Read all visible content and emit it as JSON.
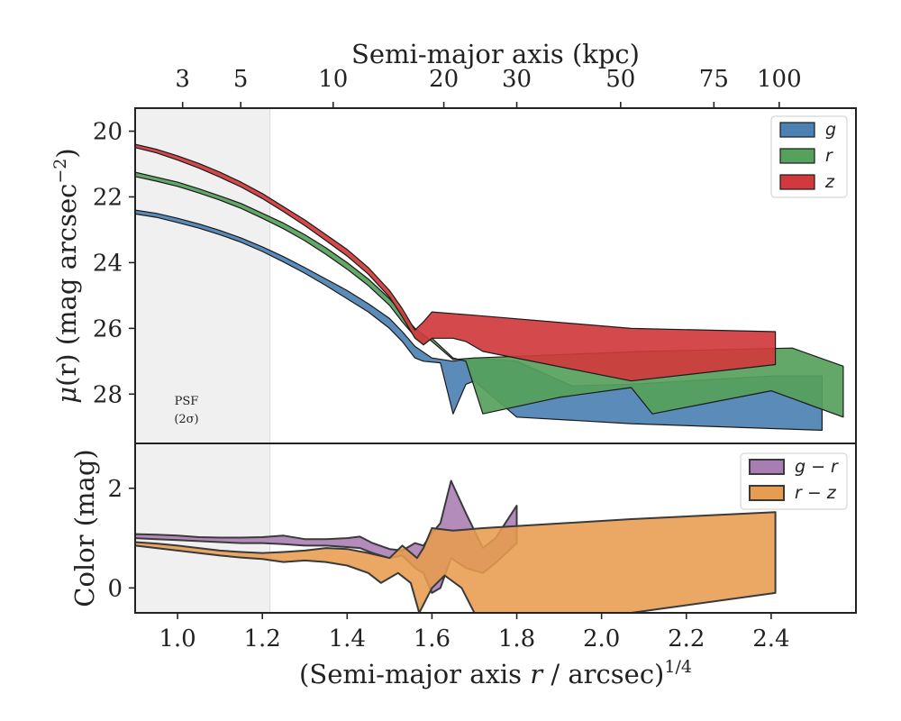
{
  "chart_data": [
    {
      "panel": "surface-brightness",
      "type": "area",
      "top_axis": {
        "label": "Semi-major axis (kpc)",
        "ticks": [
          {
            "label": "3",
            "x": 1.012
          },
          {
            "label": "5",
            "x": 1.149
          },
          {
            "label": "10",
            "x": 1.367
          },
          {
            "label": "20",
            "x": 1.628
          },
          {
            "label": "30",
            "x": 1.8
          },
          {
            "label": "50",
            "x": 2.045
          },
          {
            "label": "75",
            "x": 2.265
          },
          {
            "label": "100",
            "x": 2.419
          }
        ]
      },
      "xlim": [
        0.9,
        2.6
      ],
      "ylim": [
        29.5,
        19.3
      ],
      "y_inverted": true,
      "ylabel_main": "(r) (mag arcsec",
      "ylabel_mu": "μ",
      "ylabel_sup": "−2",
      "ylabel_close": ")",
      "yticks": [
        20,
        22,
        24,
        26,
        28
      ],
      "psf_region": {
        "x_range": [
          0.9,
          1.218
        ],
        "label_line1": "PSF",
        "label_line2": "(2σ)"
      },
      "legend": {
        "placement": "upper-right",
        "entries": [
          "g",
          "r",
          "z"
        ]
      },
      "series": [
        {
          "name": "g",
          "color": "#4c81b3",
          "upper": [
            [
              0.9,
              22.4
            ],
            [
              0.95,
              22.5
            ],
            [
              1.0,
              22.65
            ],
            [
              1.05,
              22.82
            ],
            [
              1.1,
              23.02
            ],
            [
              1.15,
              23.25
            ],
            [
              1.2,
              23.52
            ],
            [
              1.25,
              23.82
            ],
            [
              1.3,
              24.15
            ],
            [
              1.35,
              24.5
            ],
            [
              1.4,
              24.85
            ],
            [
              1.45,
              25.25
            ],
            [
              1.5,
              25.7
            ],
            [
              1.53,
              26.1
            ],
            [
              1.56,
              26.55
            ],
            [
              1.6,
              26.9
            ],
            [
              1.65,
              27.0
            ],
            [
              1.7,
              26.9
            ],
            [
              1.8,
              27.0
            ],
            [
              1.93,
              27.75
            ],
            [
              2.07,
              27.7
            ],
            [
              2.4,
              27.45
            ],
            [
              2.52,
              27.45
            ]
          ],
          "lower": [
            [
              0.9,
              22.52
            ],
            [
              0.95,
              22.62
            ],
            [
              1.0,
              22.78
            ],
            [
              1.05,
              22.95
            ],
            [
              1.1,
              23.15
            ],
            [
              1.15,
              23.38
            ],
            [
              1.2,
              23.66
            ],
            [
              1.25,
              23.98
            ],
            [
              1.3,
              24.32
            ],
            [
              1.35,
              24.7
            ],
            [
              1.4,
              25.1
            ],
            [
              1.45,
              25.5
            ],
            [
              1.5,
              26.0
            ],
            [
              1.53,
              26.4
            ],
            [
              1.56,
              26.9
            ],
            [
              1.58,
              27.0
            ],
            [
              1.62,
              27.05
            ],
            [
              1.65,
              28.6
            ],
            [
              1.68,
              27.7
            ],
            [
              1.7,
              27.6
            ],
            [
              1.8,
              28.7
            ],
            [
              2.07,
              28.9
            ],
            [
              2.52,
              29.1
            ]
          ]
        },
        {
          "name": "r",
          "color": "#56a15b",
          "upper": [
            [
              0.9,
              21.25
            ],
            [
              0.95,
              21.4
            ],
            [
              1.0,
              21.55
            ],
            [
              1.05,
              21.75
            ],
            [
              1.1,
              21.97
            ],
            [
              1.15,
              22.2
            ],
            [
              1.2,
              22.5
            ],
            [
              1.25,
              22.8
            ],
            [
              1.3,
              23.15
            ],
            [
              1.35,
              23.55
            ],
            [
              1.4,
              24.0
            ],
            [
              1.45,
              24.5
            ],
            [
              1.5,
              25.1
            ],
            [
              1.53,
              25.55
            ],
            [
              1.56,
              26.0
            ],
            [
              1.6,
              26.4
            ],
            [
              1.65,
              26.95
            ],
            [
              1.7,
              26.9
            ],
            [
              2.1,
              26.7
            ],
            [
              2.45,
              26.6
            ],
            [
              2.57,
              27.15
            ]
          ],
          "lower": [
            [
              0.9,
              21.38
            ],
            [
              0.95,
              21.52
            ],
            [
              1.0,
              21.68
            ],
            [
              1.05,
              21.88
            ],
            [
              1.1,
              22.1
            ],
            [
              1.15,
              22.35
            ],
            [
              1.2,
              22.65
            ],
            [
              1.25,
              22.97
            ],
            [
              1.3,
              23.33
            ],
            [
              1.35,
              23.75
            ],
            [
              1.4,
              24.2
            ],
            [
              1.45,
              24.7
            ],
            [
              1.5,
              25.3
            ],
            [
              1.53,
              25.8
            ],
            [
              1.56,
              26.25
            ],
            [
              1.58,
              26.5
            ],
            [
              1.6,
              26.3
            ],
            [
              1.65,
              26.9
            ],
            [
              1.68,
              27.0
            ],
            [
              1.72,
              28.6
            ],
            [
              1.9,
              28.1
            ],
            [
              2.07,
              27.8
            ],
            [
              2.12,
              28.6
            ],
            [
              2.4,
              27.9
            ],
            [
              2.57,
              28.7
            ]
          ]
        },
        {
          "name": "z",
          "color": "#d03a3d",
          "upper": [
            [
              0.9,
              20.4
            ],
            [
              0.95,
              20.55
            ],
            [
              1.0,
              20.75
            ],
            [
              1.05,
              20.98
            ],
            [
              1.1,
              21.25
            ],
            [
              1.15,
              21.55
            ],
            [
              1.2,
              21.9
            ],
            [
              1.25,
              22.3
            ],
            [
              1.3,
              22.7
            ],
            [
              1.35,
              23.15
            ],
            [
              1.4,
              23.6
            ],
            [
              1.45,
              24.15
            ],
            [
              1.5,
              24.85
            ],
            [
              1.53,
              25.4
            ],
            [
              1.56,
              26.05
            ],
            [
              1.58,
              25.8
            ],
            [
              1.6,
              25.5
            ],
            [
              1.7,
              25.6
            ],
            [
              2.07,
              26.0
            ],
            [
              2.41,
              26.1
            ]
          ],
          "lower": [
            [
              0.9,
              20.5
            ],
            [
              0.95,
              20.66
            ],
            [
              1.0,
              20.88
            ],
            [
              1.05,
              21.12
            ],
            [
              1.1,
              21.4
            ],
            [
              1.15,
              21.7
            ],
            [
              1.2,
              22.05
            ],
            [
              1.25,
              22.45
            ],
            [
              1.3,
              22.87
            ],
            [
              1.35,
              23.33
            ],
            [
              1.4,
              23.8
            ],
            [
              1.45,
              24.35
            ],
            [
              1.5,
              25.05
            ],
            [
              1.53,
              25.65
            ],
            [
              1.56,
              26.3
            ],
            [
              1.58,
              26.5
            ],
            [
              1.6,
              26.3
            ],
            [
              1.65,
              26.3
            ],
            [
              1.68,
              26.4
            ],
            [
              1.72,
              26.7
            ],
            [
              2.07,
              27.6
            ],
            [
              2.41,
              27.1
            ]
          ]
        }
      ]
    },
    {
      "panel": "color",
      "type": "area",
      "xlim": [
        0.9,
        2.6
      ],
      "ylim": [
        -0.5,
        2.9
      ],
      "ylabel": "Color (mag)",
      "xlabel_main": "(Semi-major axis ",
      "xlabel_r": "r",
      "xlabel_rest": " / arcsec)",
      "xlabel_sup": "1/4",
      "xticks": [
        {
          "label": "1.0",
          "x": 1.0
        },
        {
          "label": "1.2",
          "x": 1.2
        },
        {
          "label": "1.4",
          "x": 1.4
        },
        {
          "label": "1.6",
          "x": 1.6
        },
        {
          "label": "1.8",
          "x": 1.8
        },
        {
          "label": "2.0",
          "x": 2.0
        },
        {
          "label": "2.2",
          "x": 2.2
        },
        {
          "label": "2.4",
          "x": 2.4
        }
      ],
      "yticks": [
        0,
        2
      ],
      "psf_region": {
        "x_range": [
          0.9,
          1.218
        ]
      },
      "legend": {
        "placement": "upper-right",
        "entries": [
          "g − r",
          "r − z"
        ]
      },
      "series": [
        {
          "name": "g − r",
          "color": "#a97cb3",
          "upper": [
            [
              0.9,
              1.08
            ],
            [
              0.95,
              1.07
            ],
            [
              1.0,
              1.05
            ],
            [
              1.05,
              1.02
            ],
            [
              1.1,
              1.01
            ],
            [
              1.15,
              1.01
            ],
            [
              1.2,
              1.02
            ],
            [
              1.25,
              1.05
            ],
            [
              1.3,
              0.98
            ],
            [
              1.35,
              0.98
            ],
            [
              1.4,
              1.0
            ],
            [
              1.43,
              1.03
            ],
            [
              1.46,
              0.9
            ],
            [
              1.5,
              0.78
            ],
            [
              1.53,
              0.75
            ],
            [
              1.56,
              0.9
            ],
            [
              1.58,
              0.85
            ],
            [
              1.6,
              1.1
            ],
            [
              1.62,
              1.3
            ],
            [
              1.645,
              2.15
            ],
            [
              1.68,
              1.5
            ],
            [
              1.72,
              0.8
            ],
            [
              1.75,
              1.0
            ],
            [
              1.8,
              1.65
            ]
          ],
          "lower": [
            [
              0.9,
              1.0
            ],
            [
              0.95,
              0.98
            ],
            [
              1.0,
              0.96
            ],
            [
              1.05,
              0.94
            ],
            [
              1.1,
              0.92
            ],
            [
              1.15,
              0.9
            ],
            [
              1.2,
              0.9
            ],
            [
              1.25,
              0.88
            ],
            [
              1.3,
              0.85
            ],
            [
              1.35,
              0.85
            ],
            [
              1.4,
              0.82
            ],
            [
              1.43,
              0.8
            ],
            [
              1.46,
              0.7
            ],
            [
              1.5,
              0.6
            ],
            [
              1.53,
              0.65
            ],
            [
              1.56,
              0.4
            ],
            [
              1.58,
              0.3
            ],
            [
              1.6,
              -0.1
            ],
            [
              1.62,
              0.0
            ],
            [
              1.645,
              0.6
            ],
            [
              1.68,
              0.4
            ],
            [
              1.72,
              0.3
            ],
            [
              1.75,
              0.5
            ],
            [
              1.8,
              0.9
            ]
          ]
        },
        {
          "name": "r − z",
          "color": "#e79c4f",
          "upper": [
            [
              0.9,
              0.92
            ],
            [
              0.95,
              0.89
            ],
            [
              1.0,
              0.85
            ],
            [
              1.05,
              0.8
            ],
            [
              1.1,
              0.75
            ],
            [
              1.15,
              0.72
            ],
            [
              1.2,
              0.7
            ],
            [
              1.25,
              0.72
            ],
            [
              1.3,
              0.75
            ],
            [
              1.35,
              0.8
            ],
            [
              1.4,
              0.78
            ],
            [
              1.45,
              0.7
            ],
            [
              1.5,
              0.6
            ],
            [
              1.53,
              0.85
            ],
            [
              1.565,
              0.6
            ],
            [
              1.58,
              0.8
            ],
            [
              1.6,
              1.2
            ],
            [
              1.65,
              1.15
            ],
            [
              1.72,
              1.2
            ],
            [
              2.07,
              1.38
            ],
            [
              2.41,
              1.52
            ]
          ],
          "lower": [
            [
              0.9,
              0.85
            ],
            [
              0.95,
              0.8
            ],
            [
              1.0,
              0.75
            ],
            [
              1.05,
              0.7
            ],
            [
              1.1,
              0.65
            ],
            [
              1.15,
              0.61
            ],
            [
              1.2,
              0.58
            ],
            [
              1.25,
              0.52
            ],
            [
              1.3,
              0.55
            ],
            [
              1.35,
              0.52
            ],
            [
              1.4,
              0.45
            ],
            [
              1.45,
              0.3
            ],
            [
              1.48,
              0.1
            ],
            [
              1.52,
              0.3
            ],
            [
              1.55,
              0.1
            ],
            [
              1.57,
              -0.5
            ],
            [
              1.6,
              0.0
            ],
            [
              1.63,
              0.25
            ],
            [
              1.67,
              0.0
            ],
            [
              1.7,
              -0.5
            ],
            [
              2.07,
              -0.5
            ],
            [
              2.41,
              -0.1
            ]
          ]
        }
      ]
    }
  ]
}
